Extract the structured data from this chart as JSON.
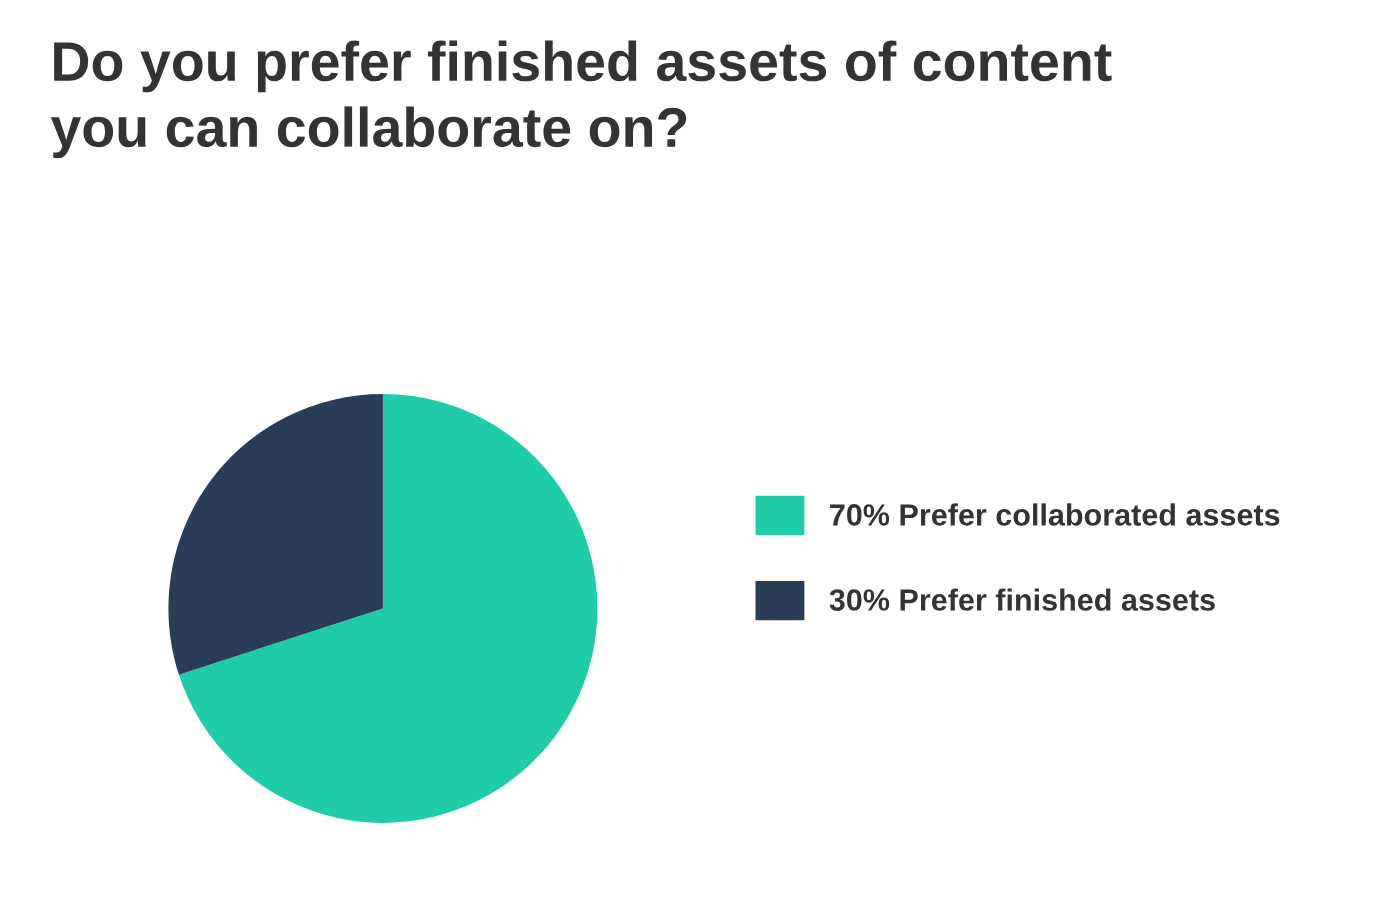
{
  "chart_data": {
    "type": "pie",
    "title": "Do you prefer finished assets of content\nyou can collaborate on?",
    "categories": [
      "70% Prefer collaborated assets",
      "30% Prefer finished assets"
    ],
    "values": [
      70,
      30
    ],
    "colors": [
      "#1fcca8",
      "#2a3d56"
    ],
    "legend": "right"
  }
}
